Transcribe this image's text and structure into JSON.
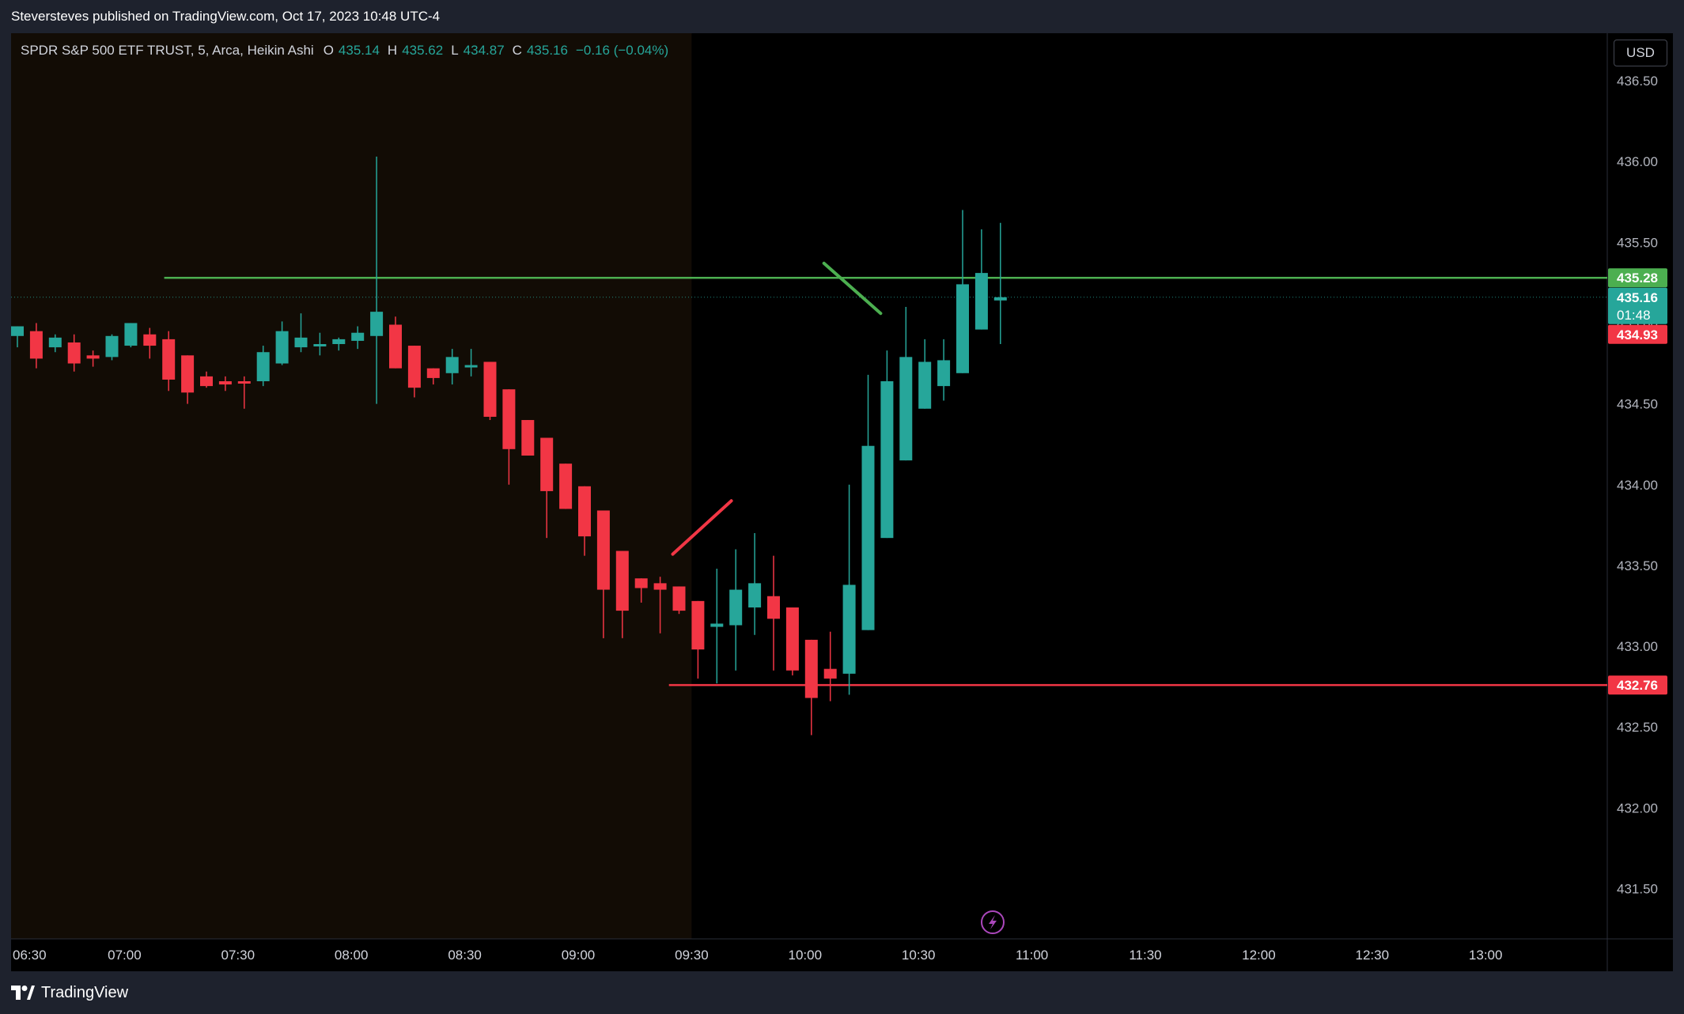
{
  "header": {
    "published_text": "Steversteves published on TradingView.com, Oct 17, 2023 10:48 UTC-4"
  },
  "legend": {
    "symbol": "SPDR S&P 500 ETF TRUST, 5, Arca, Heikin Ashi",
    "o_label": "O",
    "o_value": "435.14",
    "h_label": "H",
    "h_value": "435.62",
    "l_label": "L",
    "l_value": "434.87",
    "c_label": "C",
    "c_value": "435.16",
    "change": "−0.16 (−0.04%)"
  },
  "currency_button": "USD",
  "footer": {
    "brand": "TradingView"
  },
  "colors": {
    "up": "#26a69a",
    "down": "#f23645",
    "support_line": "#f23645",
    "resistance_line": "#4caf50",
    "premarket_bg": "#120c05",
    "session_bg": "#000000"
  },
  "chart_data": {
    "type": "candlestick",
    "style": "Heikin Ashi",
    "interval": "5",
    "ylim": [
      431.2,
      436.7
    ],
    "yticks": [
      "431.50",
      "432.00",
      "432.50",
      "433.00",
      "433.50",
      "434.00",
      "434.50",
      "435.00",
      "435.50",
      "436.00",
      "436.50"
    ],
    "xticks": [
      "06:30",
      "07:00",
      "07:30",
      "08:00",
      "08:30",
      "09:00",
      "09:30",
      "10:00",
      "10:30",
      "11:00",
      "11:30",
      "12:00",
      "12:30",
      "13:00"
    ],
    "xlim_minutes": [
      390,
      810
    ],
    "premarket_end_minutes": 570,
    "current_price": 435.16,
    "countdown": "01:48",
    "price_labels": [
      {
        "value": 435.28,
        "text": "435.28",
        "color": "#4caf50"
      },
      {
        "value": 434.93,
        "text": "434.93",
        "color": "#f23645"
      },
      {
        "value": 432.76,
        "text": "432.76",
        "color": "#f23645"
      }
    ],
    "horizontal_lines": [
      {
        "value": 435.28,
        "from_minutes": 430.5,
        "color": "#4caf50"
      },
      {
        "value": 432.76,
        "from_minutes": 564,
        "color": "#f23645"
      }
    ],
    "trend_lines": [
      {
        "x1": 565,
        "y1": 433.57,
        "x2": 580.5,
        "y2": 433.9,
        "color": "#f23645"
      },
      {
        "x1": 605,
        "y1": 435.37,
        "x2": 620,
        "y2": 435.06,
        "color": "#4caf50"
      }
    ],
    "candles": [
      {
        "t": 390,
        "o": 434.92,
        "h": 434.98,
        "l": 434.85,
        "c": 434.98
      },
      {
        "t": 395,
        "o": 434.95,
        "h": 435.0,
        "l": 434.72,
        "c": 434.78
      },
      {
        "t": 400,
        "o": 434.85,
        "h": 434.93,
        "l": 434.82,
        "c": 434.91
      },
      {
        "t": 405,
        "o": 434.88,
        "h": 434.93,
        "l": 434.7,
        "c": 434.75
      },
      {
        "t": 410,
        "o": 434.8,
        "h": 434.83,
        "l": 434.73,
        "c": 434.78
      },
      {
        "t": 415,
        "o": 434.79,
        "h": 434.93,
        "l": 434.77,
        "c": 434.92
      },
      {
        "t": 420,
        "o": 434.86,
        "h": 435.0,
        "l": 434.85,
        "c": 435.0
      },
      {
        "t": 425,
        "o": 434.93,
        "h": 434.97,
        "l": 434.78,
        "c": 434.86
      },
      {
        "t": 430,
        "o": 434.9,
        "h": 434.95,
        "l": 434.58,
        "c": 434.65
      },
      {
        "t": 435,
        "o": 434.8,
        "h": 434.8,
        "l": 434.5,
        "c": 434.57
      },
      {
        "t": 440,
        "o": 434.67,
        "h": 434.7,
        "l": 434.6,
        "c": 434.61
      },
      {
        "t": 445,
        "o": 434.64,
        "h": 434.67,
        "l": 434.58,
        "c": 434.62
      },
      {
        "t": 450,
        "o": 434.64,
        "h": 434.67,
        "l": 434.47,
        "c": 434.63
      },
      {
        "t": 455,
        "o": 434.64,
        "h": 434.86,
        "l": 434.61,
        "c": 434.82
      },
      {
        "t": 460,
        "o": 434.75,
        "h": 435.01,
        "l": 434.74,
        "c": 434.95
      },
      {
        "t": 465,
        "o": 434.85,
        "h": 435.06,
        "l": 434.82,
        "c": 434.91
      },
      {
        "t": 470,
        "o": 434.87,
        "h": 434.94,
        "l": 434.8,
        "c": 434.87
      },
      {
        "t": 475,
        "o": 434.87,
        "h": 434.91,
        "l": 434.83,
        "c": 434.9
      },
      {
        "t": 480,
        "o": 434.89,
        "h": 434.98,
        "l": 434.84,
        "c": 434.94
      },
      {
        "t": 485,
        "o": 434.92,
        "h": 436.03,
        "l": 434.5,
        "c": 435.07
      },
      {
        "t": 490,
        "o": 434.99,
        "h": 435.04,
        "l": 434.72,
        "c": 434.72
      },
      {
        "t": 495,
        "o": 434.86,
        "h": 434.86,
        "l": 434.54,
        "c": 434.6
      },
      {
        "t": 500,
        "o": 434.72,
        "h": 434.72,
        "l": 434.62,
        "c": 434.66
      },
      {
        "t": 505,
        "o": 434.69,
        "h": 434.84,
        "l": 434.62,
        "c": 434.79
      },
      {
        "t": 510,
        "o": 434.74,
        "h": 434.84,
        "l": 434.67,
        "c": 434.74
      },
      {
        "t": 515,
        "o": 434.76,
        "h": 434.76,
        "l": 434.4,
        "c": 434.42
      },
      {
        "t": 520,
        "o": 434.59,
        "h": 434.59,
        "l": 434.0,
        "c": 434.22
      },
      {
        "t": 525,
        "o": 434.4,
        "h": 434.4,
        "l": 434.18,
        "c": 434.18
      },
      {
        "t": 530,
        "o": 434.29,
        "h": 434.29,
        "l": 433.67,
        "c": 433.96
      },
      {
        "t": 535,
        "o": 434.13,
        "h": 434.13,
        "l": 433.85,
        "c": 433.85
      },
      {
        "t": 540,
        "o": 433.99,
        "h": 433.99,
        "l": 433.56,
        "c": 433.68
      },
      {
        "t": 545,
        "o": 433.84,
        "h": 433.84,
        "l": 433.05,
        "c": 433.35
      },
      {
        "t": 550,
        "o": 433.59,
        "h": 433.59,
        "l": 433.05,
        "c": 433.22
      },
      {
        "t": 555,
        "o": 433.42,
        "h": 433.42,
        "l": 433.27,
        "c": 433.36
      },
      {
        "t": 560,
        "o": 433.39,
        "h": 433.43,
        "l": 433.08,
        "c": 433.35
      },
      {
        "t": 565,
        "o": 433.37,
        "h": 433.37,
        "l": 433.2,
        "c": 433.22
      },
      {
        "t": 570,
        "o": 433.28,
        "h": 433.28,
        "l": 432.8,
        "c": 432.98
      },
      {
        "t": 575,
        "o": 433.12,
        "h": 433.48,
        "l": 432.77,
        "c": 433.14
      },
      {
        "t": 580,
        "o": 433.13,
        "h": 433.6,
        "l": 432.85,
        "c": 433.35
      },
      {
        "t": 585,
        "o": 433.24,
        "h": 433.7,
        "l": 433.07,
        "c": 433.39
      },
      {
        "t": 590,
        "o": 433.31,
        "h": 433.56,
        "l": 432.85,
        "c": 433.17
      },
      {
        "t": 595,
        "o": 433.24,
        "h": 433.24,
        "l": 432.82,
        "c": 432.85
      },
      {
        "t": 600,
        "o": 433.04,
        "h": 433.04,
        "l": 432.45,
        "c": 432.68
      },
      {
        "t": 605,
        "o": 432.86,
        "h": 433.09,
        "l": 432.66,
        "c": 432.8
      },
      {
        "t": 610,
        "o": 432.83,
        "h": 434.0,
        "l": 432.7,
        "c": 433.38
      },
      {
        "t": 615,
        "o": 433.1,
        "h": 434.68,
        "l": 433.1,
        "c": 434.24
      },
      {
        "t": 620,
        "o": 433.67,
        "h": 434.83,
        "l": 433.67,
        "c": 434.64
      },
      {
        "t": 625,
        "o": 434.15,
        "h": 435.1,
        "l": 434.15,
        "c": 434.79
      },
      {
        "t": 630,
        "o": 434.47,
        "h": 434.9,
        "l": 434.47,
        "c": 434.76
      },
      {
        "t": 635,
        "o": 434.61,
        "h": 434.9,
        "l": 434.52,
        "c": 434.77
      },
      {
        "t": 640,
        "o": 434.69,
        "h": 435.7,
        "l": 434.69,
        "c": 435.24
      },
      {
        "t": 645,
        "o": 434.96,
        "h": 435.58,
        "l": 434.96,
        "c": 435.31
      },
      {
        "t": 650,
        "o": 435.14,
        "h": 435.62,
        "l": 434.87,
        "c": 435.16
      }
    ]
  }
}
